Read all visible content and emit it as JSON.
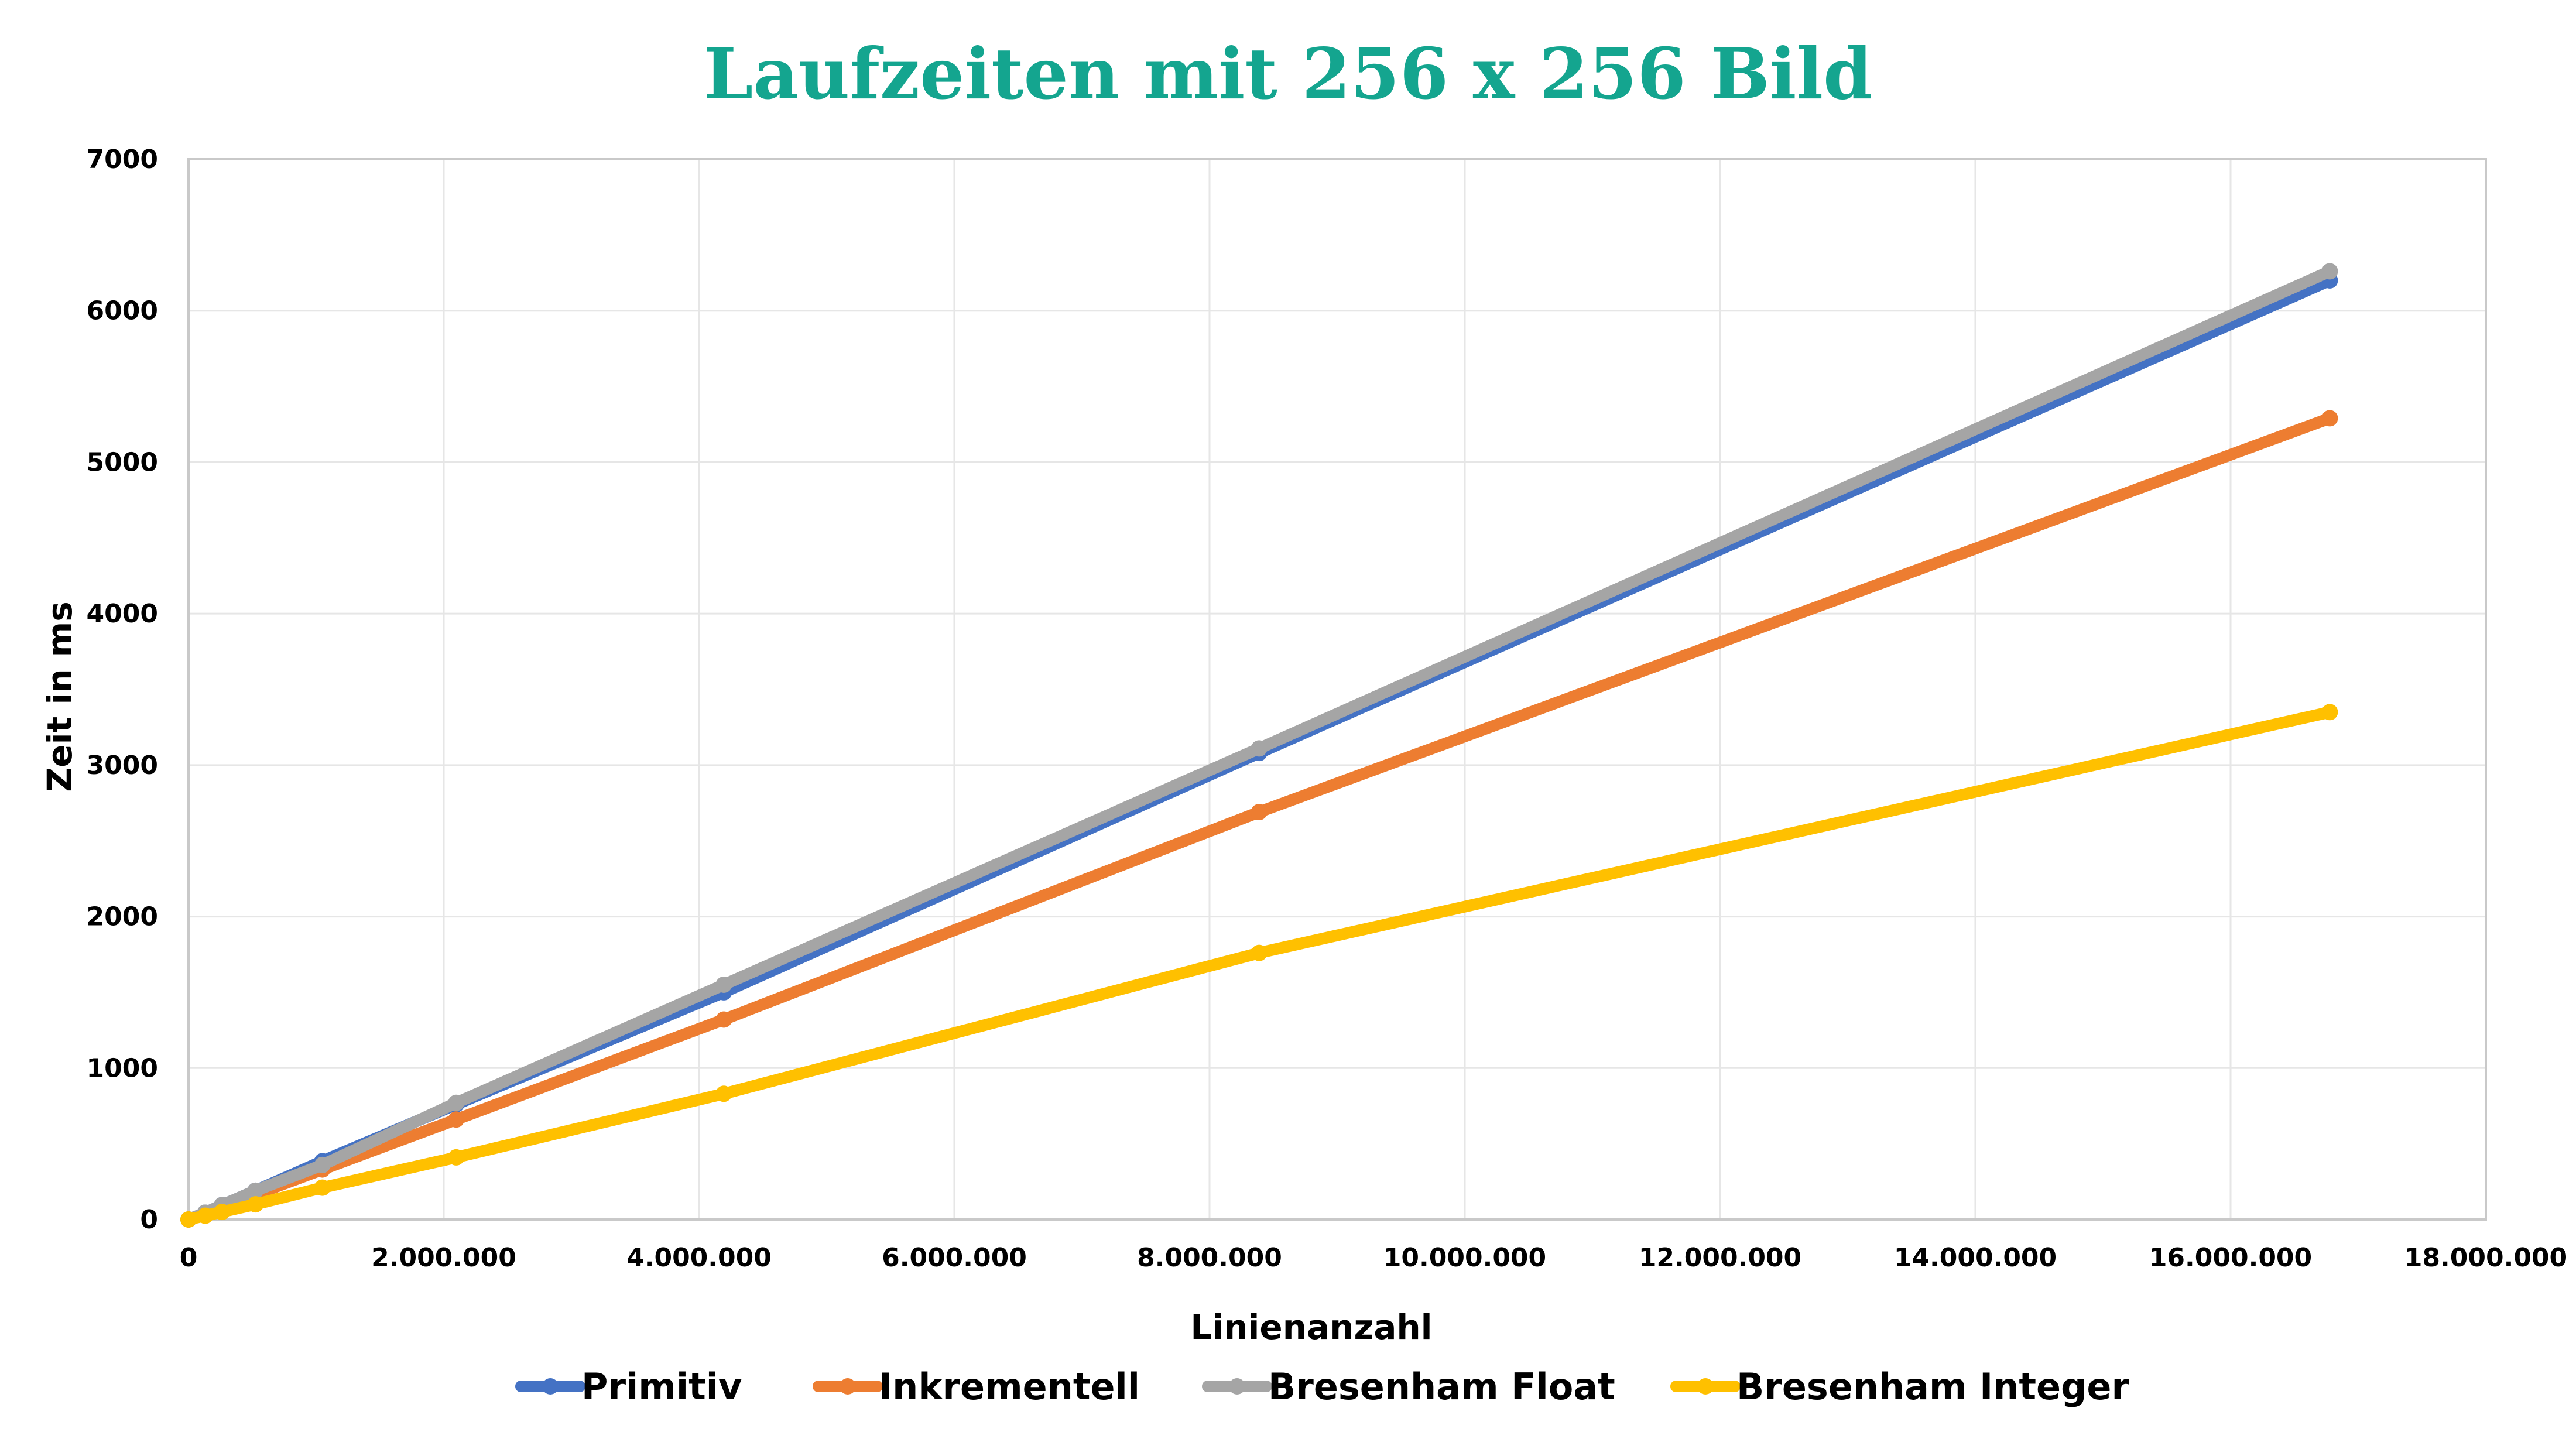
{
  "chart_data": {
    "type": "line",
    "title": "Laufzeiten mit 256 x 256 Bild",
    "xlabel": "Linienanzahl",
    "ylabel": "Zeit in ms",
    "xlim": [
      0,
      18000000
    ],
    "ylim": [
      0,
      7000
    ],
    "x_ticks": [
      0,
      2000000,
      4000000,
      6000000,
      8000000,
      10000000,
      12000000,
      14000000,
      16000000,
      18000000
    ],
    "x_tick_labels": [
      "0",
      "2.000.000",
      "4.000.000",
      "6.000.000",
      "8.000.000",
      "10.000.000",
      "12.000.000",
      "14.000.000",
      "16.000.000",
      "18.000.000"
    ],
    "y_ticks": [
      0,
      1000,
      2000,
      3000,
      4000,
      5000,
      6000,
      7000
    ],
    "y_tick_labels": [
      "0",
      "1000",
      "2000",
      "3000",
      "4000",
      "5000",
      "6000",
      "7000"
    ],
    "grid": true,
    "legend_position": "bottom",
    "x": [
      0,
      131072,
      262144,
      524288,
      1048576,
      2097152,
      4194304,
      8388608,
      16777216
    ],
    "series": [
      {
        "name": "Primitiv",
        "color": "#4472c4",
        "values": [
          0,
          45,
          95,
          190,
          385,
          760,
          1500,
          3080,
          6200
        ]
      },
      {
        "name": "Inkrementell",
        "color": "#ed7d31",
        "values": [
          0,
          40,
          80,
          165,
          330,
          660,
          1320,
          2690,
          5290
        ]
      },
      {
        "name": "Bresenham Float",
        "color": "#a5a5a5",
        "values": [
          0,
          45,
          95,
          190,
          360,
          770,
          1550,
          3110,
          6260
        ]
      },
      {
        "name": "Bresenham Integer",
        "color": "#ffc000",
        "values": [
          0,
          25,
          50,
          100,
          210,
          410,
          830,
          1760,
          3350
        ]
      }
    ]
  }
}
